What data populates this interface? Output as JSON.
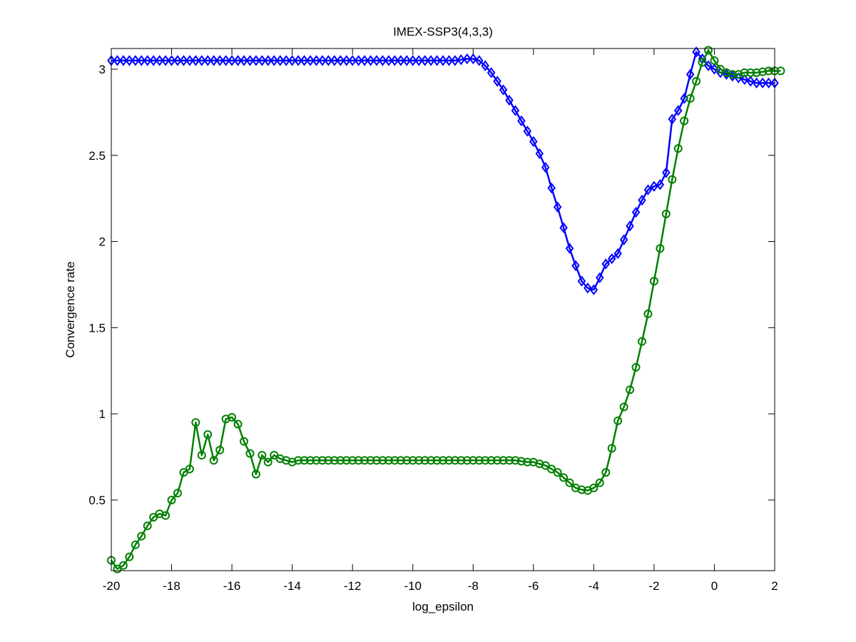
{
  "chart_data": {
    "type": "line",
    "title": "IMEX-SSP3(4,3,3)",
    "xlabel": "log_epsilon",
    "ylabel": "Convergence rate",
    "xlim": [
      -20,
      2
    ],
    "ylim": [
      0.09,
      3.12
    ],
    "xticks": [
      -20,
      -18,
      -16,
      -14,
      -12,
      -10,
      -8,
      -6,
      -4,
      -2,
      0,
      2
    ],
    "yticks": [
      0.5,
      1,
      1.5,
      2,
      2.5,
      3
    ],
    "xtick_labels": [
      "-20",
      "-18",
      "-16",
      "-14",
      "-12",
      "-10",
      "-8",
      "-6",
      "-4",
      "-2",
      "0",
      "2"
    ],
    "ytick_labels": [
      "0.5",
      "1",
      "1.5",
      "2",
      "2.5",
      "3"
    ],
    "grid": false,
    "legend": "none",
    "series": [
      {
        "color": "#0000ff",
        "marker": "diamond",
        "x_start": -20,
        "x_step": 0.2,
        "values": [
          3.05,
          3.05,
          3.05,
          3.05,
          3.05,
          3.05,
          3.05,
          3.05,
          3.05,
          3.05,
          3.05,
          3.05,
          3.05,
          3.05,
          3.05,
          3.05,
          3.05,
          3.05,
          3.05,
          3.05,
          3.05,
          3.05,
          3.05,
          3.05,
          3.05,
          3.05,
          3.05,
          3.05,
          3.05,
          3.05,
          3.05,
          3.05,
          3.05,
          3.05,
          3.05,
          3.05,
          3.05,
          3.05,
          3.05,
          3.05,
          3.05,
          3.05,
          3.05,
          3.05,
          3.05,
          3.05,
          3.05,
          3.05,
          3.05,
          3.05,
          3.05,
          3.05,
          3.05,
          3.05,
          3.05,
          3.05,
          3.05,
          3.05,
          3.055,
          3.06,
          3.06,
          3.05,
          3.02,
          2.98,
          2.93,
          2.88,
          2.82,
          2.76,
          2.7,
          2.64,
          2.58,
          2.51,
          2.43,
          2.31,
          2.2,
          2.08,
          1.96,
          1.86,
          1.77,
          1.73,
          1.72,
          1.79,
          1.87,
          1.9,
          1.93,
          2.01,
          2.09,
          2.17,
          2.24,
          2.3,
          2.32,
          2.33,
          2.4,
          2.71,
          2.76,
          2.83,
          2.97,
          3.1,
          3.06,
          3.02,
          3.0,
          2.98,
          2.97,
          2.96,
          2.95,
          2.94,
          2.93,
          2.92,
          2.92,
          2.92,
          2.92
        ]
      },
      {
        "color": "#008000",
        "marker": "circle",
        "x_start": -20,
        "x_step": 0.2,
        "values": [
          0.15,
          0.1,
          0.12,
          0.17,
          0.24,
          0.29,
          0.35,
          0.4,
          0.42,
          0.41,
          0.5,
          0.54,
          0.66,
          0.68,
          0.95,
          0.76,
          0.88,
          0.73,
          0.79,
          0.97,
          0.98,
          0.94,
          0.84,
          0.77,
          0.65,
          0.76,
          0.72,
          0.76,
          0.74,
          0.73,
          0.72,
          0.73,
          0.73,
          0.73,
          0.73,
          0.73,
          0.73,
          0.73,
          0.73,
          0.73,
          0.73,
          0.73,
          0.73,
          0.73,
          0.73,
          0.73,
          0.73,
          0.73,
          0.73,
          0.73,
          0.73,
          0.73,
          0.73,
          0.73,
          0.73,
          0.73,
          0.73,
          0.73,
          0.73,
          0.73,
          0.73,
          0.73,
          0.73,
          0.73,
          0.73,
          0.73,
          0.73,
          0.73,
          0.725,
          0.72,
          0.72,
          0.71,
          0.7,
          0.68,
          0.66,
          0.63,
          0.6,
          0.57,
          0.56,
          0.555,
          0.57,
          0.6,
          0.66,
          0.8,
          0.96,
          1.04,
          1.14,
          1.27,
          1.42,
          1.58,
          1.77,
          1.96,
          2.16,
          2.36,
          2.54,
          2.7,
          2.83,
          2.93,
          3.04,
          3.11,
          3.05,
          3.0,
          2.98,
          2.97,
          2.97,
          2.98,
          2.98,
          2.98,
          2.985,
          2.99,
          2.99,
          2.99
        ]
      }
    ]
  }
}
